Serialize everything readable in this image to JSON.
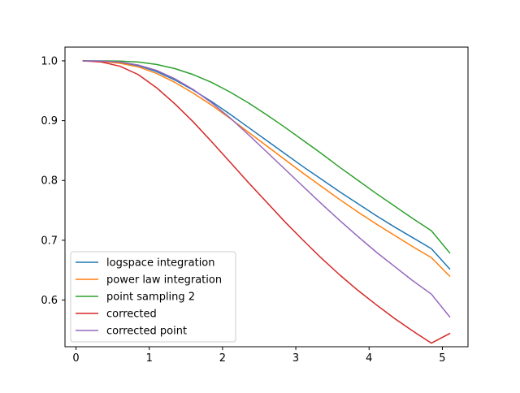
{
  "chart_data": {
    "type": "line",
    "title": "",
    "xlabel": "",
    "ylabel": "",
    "xlim": [
      -0.15,
      5.35
    ],
    "ylim": [
      0.522,
      1.023
    ],
    "x_ticks": [
      0,
      1,
      2,
      3,
      4,
      5
    ],
    "y_ticks": [
      0.6,
      0.7,
      0.8,
      0.9,
      1.0
    ],
    "x_tick_labels": [
      "0",
      "1",
      "2",
      "3",
      "4",
      "5"
    ],
    "y_tick_labels": [
      "0.6",
      "0.7",
      "0.8",
      "0.9",
      "1.0"
    ],
    "grid": false,
    "legend_position": "lower-left",
    "x": [
      0.1,
      0.35,
      0.6,
      0.85,
      1.1,
      1.35,
      1.6,
      1.85,
      2.1,
      2.35,
      2.6,
      2.85,
      3.1,
      3.35,
      3.6,
      3.85,
      4.1,
      4.35,
      4.6,
      4.85,
      5.1
    ],
    "series": [
      {
        "name": "logspace integration",
        "color": "#1f77b4",
        "values": [
          1.0,
          0.9995,
          0.9975,
          0.992,
          0.982,
          0.968,
          0.951,
          0.932,
          0.911,
          0.889,
          0.867,
          0.845,
          0.823,
          0.802,
          0.781,
          0.761,
          0.741,
          0.722,
          0.704,
          0.686,
          0.652
        ]
      },
      {
        "name": "power law integration",
        "color": "#ff7f0e",
        "values": [
          1.0,
          0.999,
          0.996,
          0.99,
          0.979,
          0.964,
          0.946,
          0.926,
          0.904,
          0.881,
          0.858,
          0.835,
          0.812,
          0.79,
          0.768,
          0.747,
          0.727,
          0.708,
          0.689,
          0.671,
          0.64
        ]
      },
      {
        "name": "point sampling 2",
        "color": "#2ca02c",
        "values": [
          1.0,
          1.0,
          0.9995,
          0.998,
          0.994,
          0.987,
          0.977,
          0.964,
          0.948,
          0.93,
          0.91,
          0.889,
          0.867,
          0.845,
          0.822,
          0.8,
          0.778,
          0.757,
          0.736,
          0.716,
          0.679
        ]
      },
      {
        "name": "corrected",
        "color": "#d62728",
        "values": [
          1.0,
          0.998,
          0.991,
          0.977,
          0.955,
          0.928,
          0.898,
          0.865,
          0.831,
          0.797,
          0.764,
          0.731,
          0.7,
          0.67,
          0.642,
          0.616,
          0.592,
          0.569,
          0.548,
          0.528,
          0.544
        ]
      },
      {
        "name": "corrected point",
        "color": "#9467bd",
        "values": [
          1.0,
          0.9995,
          0.998,
          0.993,
          0.984,
          0.97,
          0.952,
          0.93,
          0.905,
          0.877,
          0.848,
          0.819,
          0.79,
          0.761,
          0.733,
          0.706,
          0.68,
          0.656,
          0.632,
          0.61,
          0.572
        ]
      }
    ]
  }
}
